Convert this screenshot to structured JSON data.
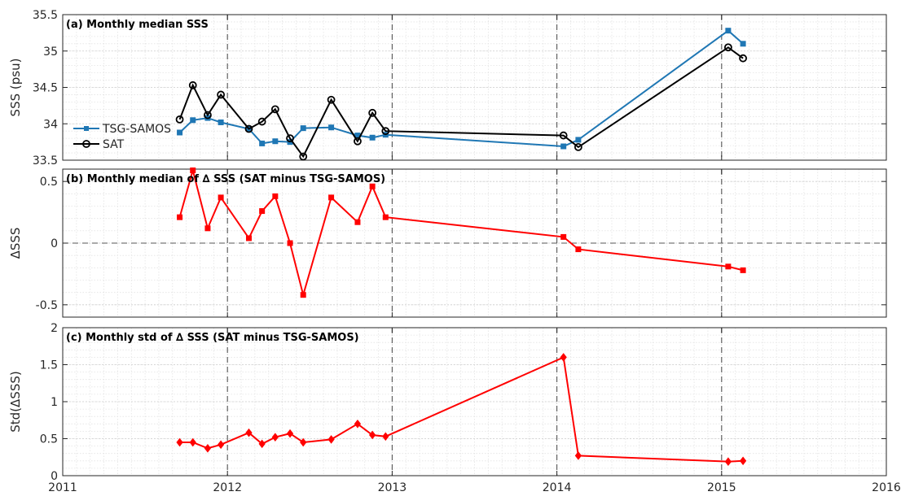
{
  "chart_data": [
    {
      "type": "line",
      "title": "(a) Monthly median SSS",
      "ylabel": "SSS (psu)",
      "xlim": [
        2011,
        2016
      ],
      "ylim": [
        33.5,
        35.5
      ],
      "yticks": [
        33.5,
        34,
        34.5,
        35,
        35.5
      ],
      "ytick_labels": [
        "33.5",
        "34",
        "34.5",
        "35",
        "35.5"
      ],
      "grid": true,
      "legend": "left",
      "series": [
        {
          "name": "TSG-SAMOS",
          "color": "#1f77b4",
          "marker": "square",
          "x": [
            2011.71,
            2011.79,
            2011.88,
            2011.96,
            2012.13,
            2012.21,
            2012.29,
            2012.38,
            2012.46,
            2012.63,
            2012.79,
            2012.88,
            2012.96,
            2014.04,
            2014.13,
            2015.04,
            2015.13
          ],
          "y": [
            33.88,
            34.05,
            34.08,
            34.02,
            33.93,
            33.73,
            33.76,
            33.75,
            33.94,
            33.95,
            33.84,
            33.81,
            33.85,
            33.69,
            33.78,
            35.28,
            35.1
          ]
        },
        {
          "name": "SAT",
          "color": "#000000",
          "marker": "circle",
          "x": [
            2011.71,
            2011.79,
            2011.88,
            2011.96,
            2012.13,
            2012.21,
            2012.29,
            2012.38,
            2012.46,
            2012.63,
            2012.79,
            2012.88,
            2012.96,
            2014.04,
            2014.13,
            2015.04,
            2015.13
          ],
          "y": [
            34.06,
            34.53,
            34.12,
            34.4,
            33.93,
            34.03,
            34.2,
            33.8,
            33.55,
            34.33,
            33.76,
            34.15,
            33.9,
            33.84,
            33.68,
            35.05,
            34.9
          ]
        }
      ]
    },
    {
      "type": "line",
      "title": "(b) Monthly median of ∆ SSS (SAT minus TSG-SAMOS)",
      "ylabel": "ΔSSS",
      "xlim": [
        2011,
        2016
      ],
      "ylim": [
        -0.6,
        0.6
      ],
      "yticks": [
        -0.5,
        0,
        0.5
      ],
      "ytick_labels": [
        "-0.5",
        "0",
        "0.5"
      ],
      "zero_line": true,
      "grid": true,
      "series": [
        {
          "name": "",
          "color": "#ff0000",
          "marker": "square",
          "x": [
            2011.71,
            2011.79,
            2011.88,
            2011.96,
            2012.13,
            2012.21,
            2012.29,
            2012.38,
            2012.46,
            2012.63,
            2012.79,
            2012.88,
            2012.96,
            2014.04,
            2014.13,
            2015.04,
            2015.13
          ],
          "y": [
            0.21,
            0.59,
            0.12,
            0.37,
            0.04,
            0.26,
            0.38,
            0.0,
            -0.42,
            0.37,
            0.17,
            0.46,
            0.21,
            0.05,
            -0.05,
            -0.19,
            -0.22
          ]
        }
      ]
    },
    {
      "type": "line",
      "title": "(c) Monthly std of ∆ SSS (SAT minus TSG-SAMOS)",
      "ylabel": "Std(ΔSSS)",
      "xlim": [
        2011,
        2016
      ],
      "ylim": [
        0,
        2
      ],
      "yticks": [
        0,
        0.5,
        1,
        1.5,
        2
      ],
      "ytick_labels": [
        "0",
        "0.5",
        "1",
        "1.5",
        "2"
      ],
      "xticks": [
        2011,
        2012,
        2013,
        2014,
        2015,
        2016
      ],
      "xtick_labels": [
        "2011",
        "2012",
        "2013",
        "2014",
        "2015",
        "2016"
      ],
      "grid": true,
      "series": [
        {
          "name": "",
          "color": "#ff0000",
          "marker": "diamond",
          "x": [
            2011.71,
            2011.79,
            2011.88,
            2011.96,
            2012.13,
            2012.21,
            2012.29,
            2012.38,
            2012.46,
            2012.63,
            2012.79,
            2012.88,
            2012.96,
            2014.04,
            2014.13,
            2015.04,
            2015.13
          ],
          "y": [
            0.45,
            0.45,
            0.37,
            0.42,
            0.58,
            0.43,
            0.52,
            0.57,
            0.45,
            0.49,
            0.7,
            0.55,
            0.53,
            1.6,
            0.27,
            0.19,
            0.2
          ]
        }
      ]
    }
  ],
  "year_dividers": [
    2012,
    2013,
    2014,
    2015
  ]
}
